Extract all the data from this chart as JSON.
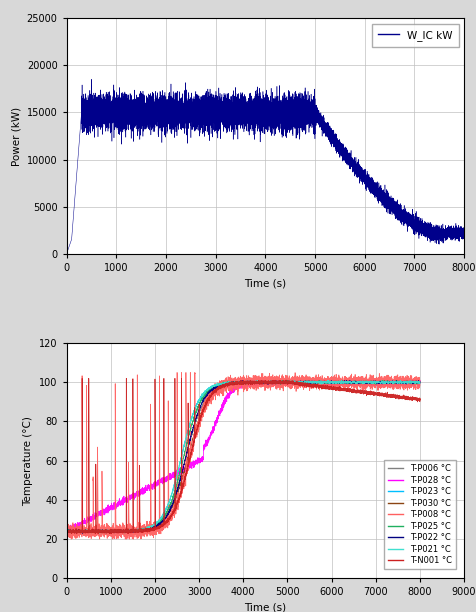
{
  "top": {
    "xlim": [
      0,
      8000
    ],
    "ylim": [
      0,
      25000
    ],
    "xticks": [
      0,
      1000,
      2000,
      3000,
      4000,
      5000,
      6000,
      7000,
      8000
    ],
    "yticks": [
      0,
      5000,
      10000,
      15000,
      20000,
      25000
    ],
    "xlabel": "Time (s)",
    "ylabel": "Power (kW)",
    "legend_label": "W_IC kW",
    "line_color": "#00008B"
  },
  "bottom": {
    "xlim": [
      0,
      9000
    ],
    "ylim": [
      0,
      120
    ],
    "xticks": [
      0,
      1000,
      2000,
      3000,
      4000,
      5000,
      6000,
      7000,
      8000,
      9000
    ],
    "yticks": [
      0,
      20,
      40,
      60,
      80,
      100,
      120
    ],
    "xlabel": "Time (s)",
    "ylabel": "Temperature (°C)",
    "series": [
      {
        "label": "T-P006 °C",
        "color": "#808080"
      },
      {
        "label": "T-P028 °C",
        "color": "#FF00FF"
      },
      {
        "label": "T-P023 °C",
        "color": "#00BFFF"
      },
      {
        "label": "T-P030 °C",
        "color": "#8B4513"
      },
      {
        "label": "T-P008 °C",
        "color": "#FF6060"
      },
      {
        "label": "T-P025 °C",
        "color": "#20B060"
      },
      {
        "label": "T-P022 °C",
        "color": "#000080"
      },
      {
        "label": "T-P021 °C",
        "color": "#40E0D0"
      },
      {
        "label": "T-N001 °C",
        "color": "#CC2020"
      }
    ]
  },
  "fig_bg": "#d8d8d8",
  "plot_bg": "#ffffff",
  "grid_color": "#c0c0c0"
}
